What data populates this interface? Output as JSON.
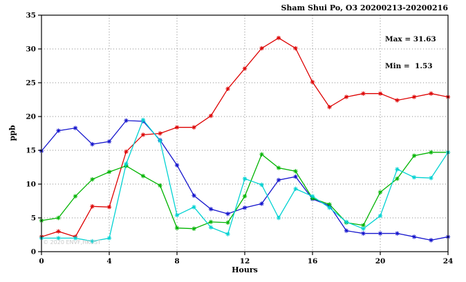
{
  "title": "Sham Shui Po, O3 20200213-20200216",
  "annotation": {
    "max_label": "Max = 31.63",
    "min_label": "Min =  1.53"
  },
  "watermark": "© 2020 ENVF,HKUST",
  "chart_data": {
    "type": "line",
    "title": "Sham Shui Po, O3 20200213-20200216",
    "xlabel": "Hours",
    "ylabel": "ppb",
    "xlim": [
      0,
      24
    ],
    "ylim": [
      0,
      35
    ],
    "xticks": [
      0,
      4,
      8,
      12,
      16,
      20,
      24
    ],
    "yticks": [
      0,
      5,
      10,
      15,
      20,
      25,
      30,
      35
    ],
    "grid": "dotted",
    "legend_position": "none",
    "max": 31.63,
    "min": 1.53,
    "marker": "asterisk",
    "x": [
      0,
      1,
      2,
      3,
      4,
      5,
      6,
      7,
      8,
      9,
      10,
      11,
      12,
      13,
      14,
      15,
      16,
      17,
      18,
      19,
      20,
      21,
      22,
      23,
      24
    ],
    "series": [
      {
        "name": "series-red",
        "color": "#dd0000",
        "values": [
          2.2,
          3.0,
          2.2,
          6.7,
          6.6,
          14.8,
          17.3,
          17.5,
          18.4,
          18.4,
          20.1,
          24.1,
          27.1,
          30.1,
          31.63,
          30.1,
          25.1,
          21.4,
          22.9,
          23.4,
          23.4,
          22.4,
          22.9,
          23.4,
          22.9
        ]
      },
      {
        "name": "series-blue",
        "color": "#1414cd",
        "values": [
          14.9,
          17.9,
          18.3,
          15.9,
          16.3,
          19.4,
          19.3,
          16.5,
          12.8,
          8.3,
          6.3,
          5.6,
          6.5,
          7.1,
          10.6,
          11.1,
          7.8,
          6.8,
          3.1,
          2.7,
          2.7,
          2.7,
          2.2,
          1.7,
          2.2
        ]
      },
      {
        "name": "series-green",
        "color": "#00b400",
        "values": [
          4.6,
          5.0,
          8.2,
          10.7,
          11.8,
          12.7,
          11.2,
          9.8,
          3.5,
          3.4,
          4.4,
          4.3,
          8.2,
          14.4,
          12.4,
          11.9,
          7.9,
          7.0,
          4.3,
          3.9,
          8.8,
          10.8,
          14.2,
          14.7,
          14.7
        ]
      },
      {
        "name": "series-cyan",
        "color": "#00d2d2",
        "values": [
          2.0,
          2.0,
          2.0,
          1.53,
          2.0,
          13.0,
          19.5,
          16.4,
          5.4,
          6.6,
          3.6,
          2.6,
          10.8,
          9.9,
          5.0,
          9.3,
          8.2,
          6.5,
          4.4,
          3.4,
          5.3,
          12.2,
          11.0,
          10.9,
          14.7
        ]
      }
    ]
  }
}
